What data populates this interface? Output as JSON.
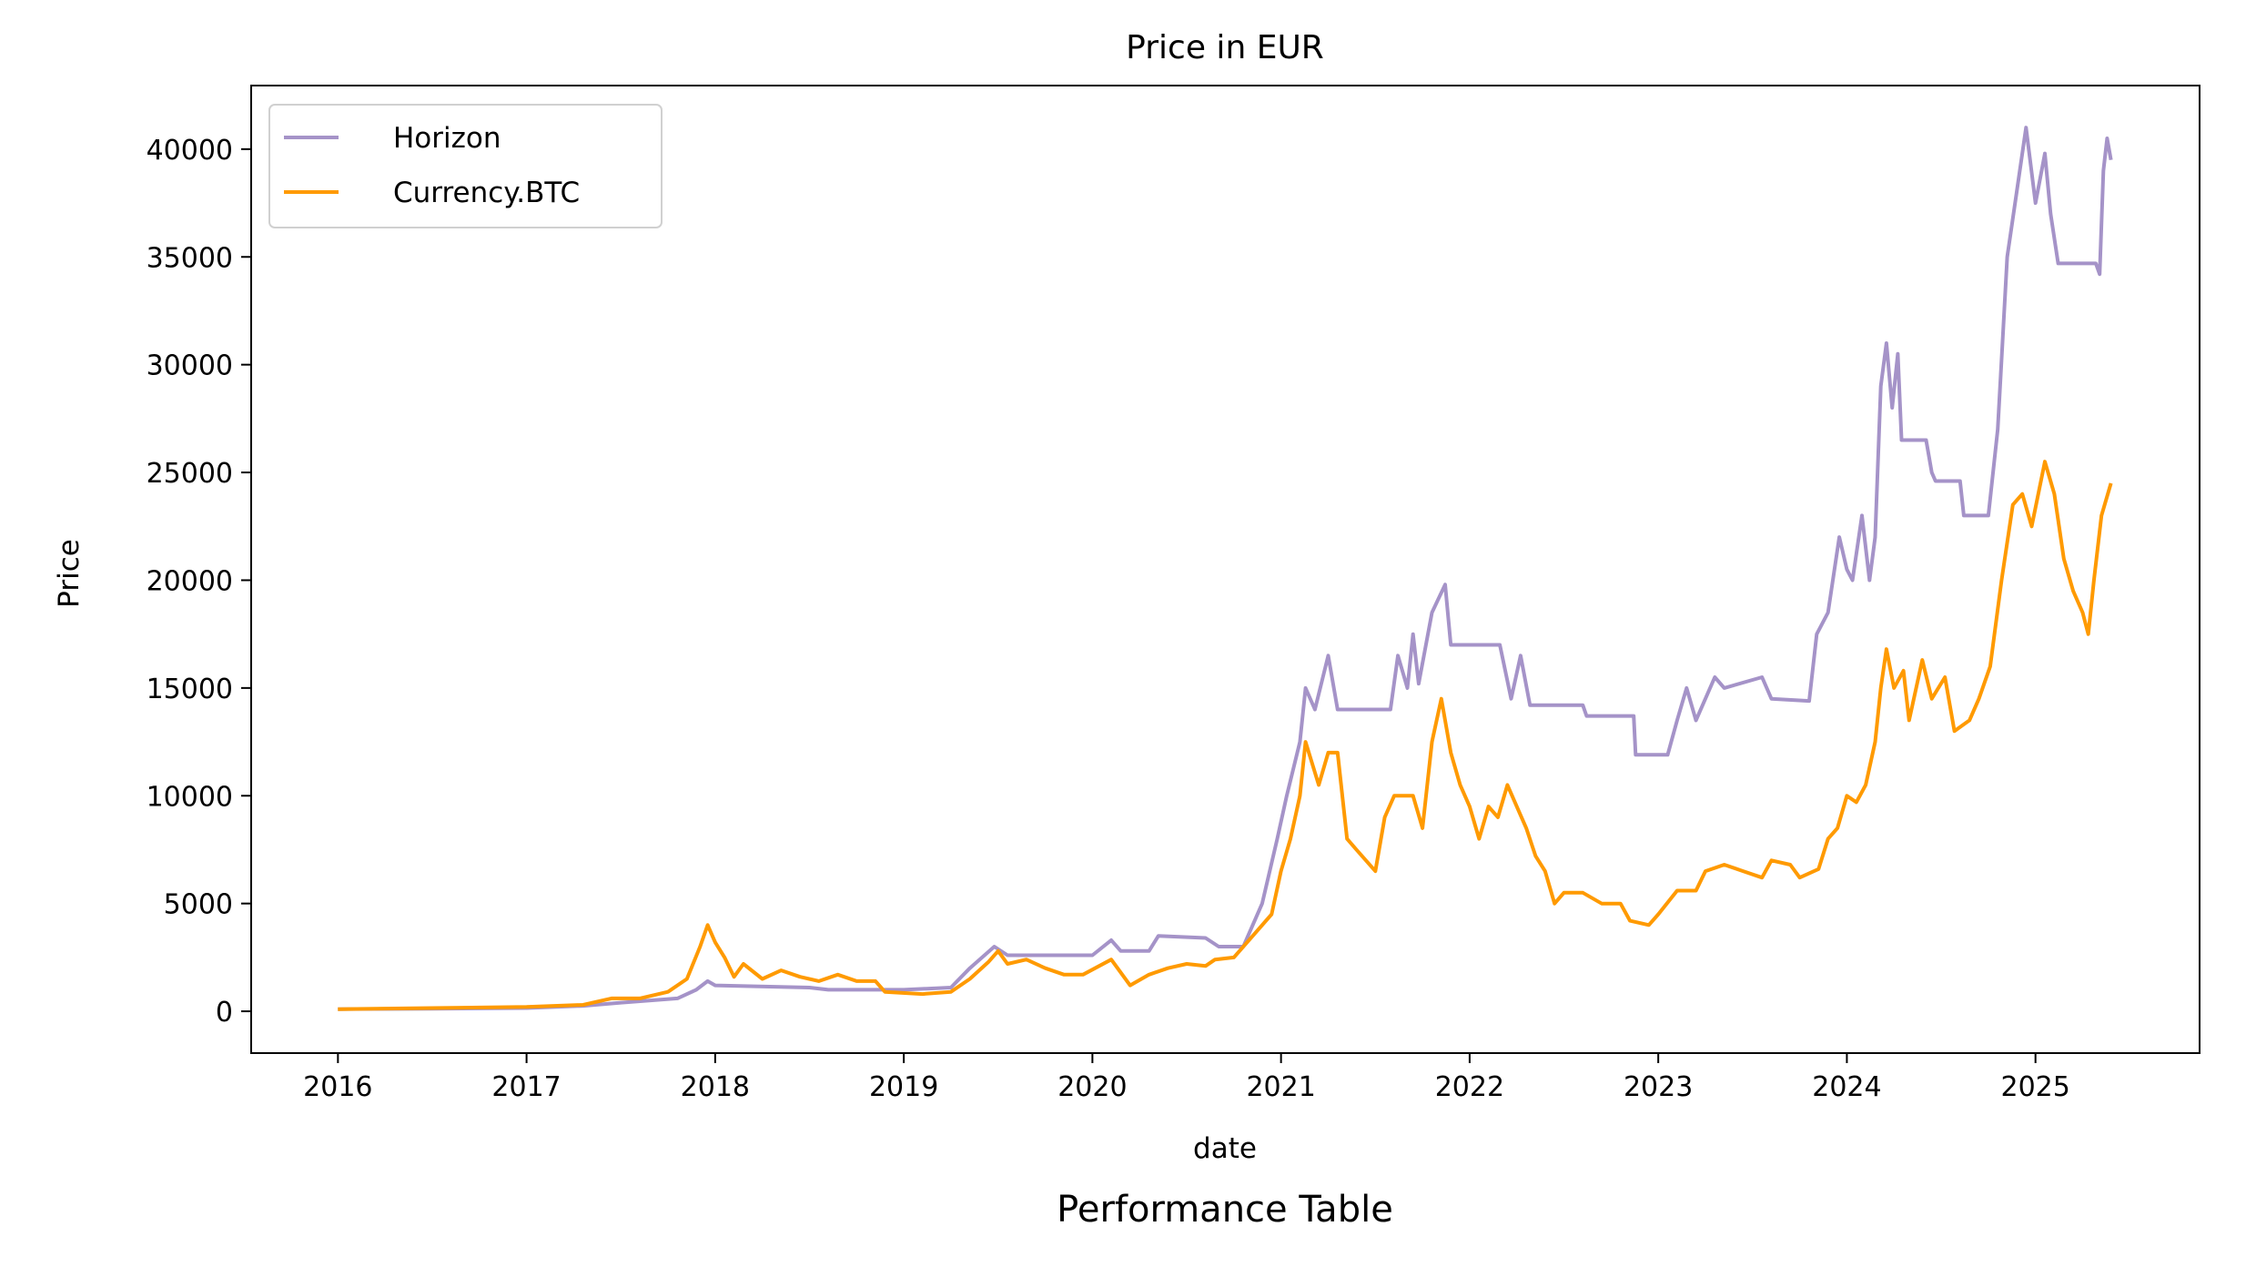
{
  "caption": "Performance Table",
  "chart_data": {
    "type": "line",
    "title": "Price in EUR",
    "xlabel": "date",
    "ylabel": "Price",
    "xlim": [
      2015.54,
      2025.87
    ],
    "ylim": [
      -1940,
      42950
    ],
    "grid": false,
    "legend_position": "top-left",
    "x_ticks": [
      2016,
      2017,
      2018,
      2019,
      2020,
      2021,
      2022,
      2023,
      2024,
      2025
    ],
    "x_tick_labels": [
      "2016",
      "2017",
      "2018",
      "2019",
      "2020",
      "2021",
      "2022",
      "2023",
      "2024",
      "2025"
    ],
    "y_ticks": [
      0,
      5000,
      10000,
      15000,
      20000,
      25000,
      30000,
      35000,
      40000
    ],
    "y_tick_labels": [
      "0",
      "5000",
      "10000",
      "15000",
      "20000",
      "25000",
      "30000",
      "35000",
      "40000"
    ],
    "series": [
      {
        "name": "Horizon",
        "color": "#a593c8",
        "points": [
          [
            2016,
            100
          ],
          [
            2016.5,
            120
          ],
          [
            2017,
            150
          ],
          [
            2017.3,
            250
          ],
          [
            2017.5,
            400
          ],
          [
            2017.8,
            600
          ],
          [
            2017.9,
            1000
          ],
          [
            2017.96,
            1400
          ],
          [
            2018.0,
            1200
          ],
          [
            2018.5,
            1100
          ],
          [
            2018.6,
            1000
          ],
          [
            2019.0,
            1000
          ],
          [
            2019.25,
            1100
          ],
          [
            2019.35,
            2000
          ],
          [
            2019.48,
            3000
          ],
          [
            2019.55,
            2600
          ],
          [
            2020.0,
            2600
          ],
          [
            2020.1,
            3300
          ],
          [
            2020.15,
            2800
          ],
          [
            2020.3,
            2800
          ],
          [
            2020.35,
            3500
          ],
          [
            2020.6,
            3400
          ],
          [
            2020.67,
            3000
          ],
          [
            2020.8,
            3000
          ],
          [
            2020.9,
            5000
          ],
          [
            2020.98,
            8000
          ],
          [
            2021.03,
            10000
          ],
          [
            2021.1,
            12500
          ],
          [
            2021.13,
            15000
          ],
          [
            2021.18,
            14000
          ],
          [
            2021.25,
            16500
          ],
          [
            2021.3,
            14000
          ],
          [
            2021.58,
            14000
          ],
          [
            2021.62,
            16500
          ],
          [
            2021.67,
            15000
          ],
          [
            2021.7,
            17500
          ],
          [
            2021.73,
            15200
          ],
          [
            2021.8,
            18500
          ],
          [
            2021.87,
            19800
          ],
          [
            2021.9,
            17000
          ],
          [
            2022.16,
            17000
          ],
          [
            2022.22,
            14500
          ],
          [
            2022.27,
            16500
          ],
          [
            2022.32,
            14200
          ],
          [
            2022.6,
            14200
          ],
          [
            2022.62,
            13700
          ],
          [
            2022.87,
            13700
          ],
          [
            2022.88,
            11900
          ],
          [
            2023.05,
            11900
          ],
          [
            2023.1,
            13500
          ],
          [
            2023.15,
            15000
          ],
          [
            2023.2,
            13500
          ],
          [
            2023.3,
            15500
          ],
          [
            2023.35,
            15000
          ],
          [
            2023.55,
            15500
          ],
          [
            2023.6,
            14500
          ],
          [
            2023.8,
            14400
          ],
          [
            2023.84,
            17500
          ],
          [
            2023.9,
            18500
          ],
          [
            2023.96,
            22000
          ],
          [
            2024.0,
            20500
          ],
          [
            2024.03,
            20000
          ],
          [
            2024.08,
            23000
          ],
          [
            2024.12,
            20000
          ],
          [
            2024.15,
            22000
          ],
          [
            2024.18,
            29000
          ],
          [
            2024.21,
            31000
          ],
          [
            2024.24,
            28000
          ],
          [
            2024.27,
            30500
          ],
          [
            2024.29,
            26500
          ],
          [
            2024.42,
            26500
          ],
          [
            2024.45,
            25000
          ],
          [
            2024.47,
            24600
          ],
          [
            2024.6,
            24600
          ],
          [
            2024.62,
            23000
          ],
          [
            2024.75,
            23000
          ],
          [
            2024.8,
            27000
          ],
          [
            2024.85,
            35000
          ],
          [
            2024.9,
            38000
          ],
          [
            2024.95,
            41000
          ],
          [
            2025.0,
            37500
          ],
          [
            2025.05,
            39800
          ],
          [
            2025.08,
            37000
          ],
          [
            2025.12,
            34700
          ],
          [
            2025.32,
            34700
          ],
          [
            2025.34,
            34200
          ],
          [
            2025.36,
            39000
          ],
          [
            2025.38,
            40500
          ],
          [
            2025.4,
            39500
          ]
        ]
      },
      {
        "name": "Currency.BTC",
        "color": "#ff9a00",
        "points": [
          [
            2016,
            100
          ],
          [
            2016.5,
            150
          ],
          [
            2017,
            200
          ],
          [
            2017.3,
            300
          ],
          [
            2017.45,
            600
          ],
          [
            2017.6,
            600
          ],
          [
            2017.75,
            900
          ],
          [
            2017.85,
            1500
          ],
          [
            2017.92,
            3000
          ],
          [
            2017.96,
            4000
          ],
          [
            2018.0,
            3200
          ],
          [
            2018.05,
            2500
          ],
          [
            2018.1,
            1600
          ],
          [
            2018.15,
            2200
          ],
          [
            2018.25,
            1500
          ],
          [
            2018.35,
            1900
          ],
          [
            2018.45,
            1600
          ],
          [
            2018.55,
            1400
          ],
          [
            2018.65,
            1700
          ],
          [
            2018.75,
            1400
          ],
          [
            2018.85,
            1400
          ],
          [
            2018.9,
            900
          ],
          [
            2019.1,
            800
          ],
          [
            2019.25,
            900
          ],
          [
            2019.35,
            1500
          ],
          [
            2019.45,
            2300
          ],
          [
            2019.5,
            2800
          ],
          [
            2019.55,
            2200
          ],
          [
            2019.65,
            2400
          ],
          [
            2019.75,
            2000
          ],
          [
            2019.85,
            1700
          ],
          [
            2019.95,
            1700
          ],
          [
            2020.1,
            2400
          ],
          [
            2020.2,
            1200
          ],
          [
            2020.3,
            1700
          ],
          [
            2020.4,
            2000
          ],
          [
            2020.5,
            2200
          ],
          [
            2020.6,
            2100
          ],
          [
            2020.65,
            2400
          ],
          [
            2020.75,
            2500
          ],
          [
            2020.85,
            3500
          ],
          [
            2020.95,
            4500
          ],
          [
            2021.0,
            6500
          ],
          [
            2021.05,
            8000
          ],
          [
            2021.1,
            10000
          ],
          [
            2021.13,
            12500
          ],
          [
            2021.2,
            10500
          ],
          [
            2021.25,
            12000
          ],
          [
            2021.3,
            12000
          ],
          [
            2021.35,
            8000
          ],
          [
            2021.4,
            7500
          ],
          [
            2021.5,
            6500
          ],
          [
            2021.55,
            9000
          ],
          [
            2021.6,
            10000
          ],
          [
            2021.7,
            10000
          ],
          [
            2021.75,
            8500
          ],
          [
            2021.8,
            12500
          ],
          [
            2021.85,
            14500
          ],
          [
            2021.9,
            12000
          ],
          [
            2021.95,
            10500
          ],
          [
            2022.0,
            9500
          ],
          [
            2022.05,
            8000
          ],
          [
            2022.1,
            9500
          ],
          [
            2022.15,
            9000
          ],
          [
            2022.2,
            10500
          ],
          [
            2022.25,
            9500
          ],
          [
            2022.3,
            8500
          ],
          [
            2022.35,
            7200
          ],
          [
            2022.4,
            6500
          ],
          [
            2022.45,
            5000
          ],
          [
            2022.5,
            5500
          ],
          [
            2022.6,
            5500
          ],
          [
            2022.7,
            5000
          ],
          [
            2022.8,
            5000
          ],
          [
            2022.85,
            4200
          ],
          [
            2022.95,
            4000
          ],
          [
            2023.0,
            4500
          ],
          [
            2023.1,
            5600
          ],
          [
            2023.2,
            5600
          ],
          [
            2023.25,
            6500
          ],
          [
            2023.35,
            6800
          ],
          [
            2023.45,
            6500
          ],
          [
            2023.55,
            6200
          ],
          [
            2023.6,
            7000
          ],
          [
            2023.7,
            6800
          ],
          [
            2023.75,
            6200
          ],
          [
            2023.85,
            6600
          ],
          [
            2023.9,
            8000
          ],
          [
            2023.95,
            8500
          ],
          [
            2024.0,
            10000
          ],
          [
            2024.05,
            9700
          ],
          [
            2024.1,
            10500
          ],
          [
            2024.15,
            12500
          ],
          [
            2024.18,
            15000
          ],
          [
            2024.21,
            16800
          ],
          [
            2024.25,
            15000
          ],
          [
            2024.3,
            15800
          ],
          [
            2024.33,
            13500
          ],
          [
            2024.4,
            16300
          ],
          [
            2024.45,
            14500
          ],
          [
            2024.52,
            15500
          ],
          [
            2024.57,
            13000
          ],
          [
            2024.65,
            13500
          ],
          [
            2024.7,
            14500
          ],
          [
            2024.76,
            16000
          ],
          [
            2024.82,
            20000
          ],
          [
            2024.88,
            23500
          ],
          [
            2024.93,
            24000
          ],
          [
            2024.98,
            22500
          ],
          [
            2025.05,
            25500
          ],
          [
            2025.1,
            24000
          ],
          [
            2025.15,
            21000
          ],
          [
            2025.2,
            19500
          ],
          [
            2025.25,
            18500
          ],
          [
            2025.28,
            17500
          ],
          [
            2025.31,
            20000
          ],
          [
            2025.35,
            23000
          ],
          [
            2025.4,
            24500
          ]
        ]
      }
    ]
  }
}
